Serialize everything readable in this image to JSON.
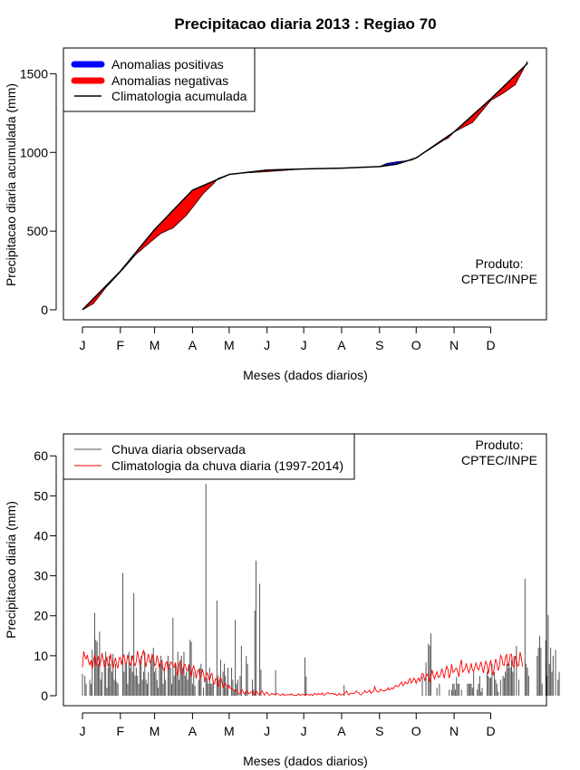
{
  "chart_data": [
    {
      "type": "area",
      "title": "Precipitacao diaria 2013 : Regiao 70",
      "xlabel": "Meses (dados diarios)",
      "ylabel": "Precipitacao diaria acumulada (mm)",
      "xlim": [
        1,
        365
      ],
      "ylim": [
        0,
        1600
      ],
      "x_tick_labels": [
        "J",
        "F",
        "M",
        "A",
        "M",
        "J",
        "J",
        "A",
        "S",
        "O",
        "N",
        "D"
      ],
      "y_ticks": [
        0,
        500,
        1000,
        1500
      ],
      "legend": [
        {
          "label": "Anomalias positivas",
          "color": "#0000ff"
        },
        {
          "label": "Anomalias negativas",
          "color": "#ff0000"
        },
        {
          "label": "Climatologia acumulada",
          "color": "#000000"
        }
      ],
      "annotation": [
        "Produto:",
        "CPTEC/INPE"
      ],
      "climatology_knots": {
        "day": [
          1,
          32,
          60,
          91,
          121,
          130,
          152,
          182,
          213,
          244,
          258,
          274,
          305,
          335,
          365
        ],
        "value": [
          0,
          245,
          510,
          760,
          860,
          868,
          888,
          895,
          900,
          910,
          925,
          965,
          1130,
          1340,
          1565
        ]
      },
      "observed_knots": {
        "day": [
          1,
          10,
          20,
          32,
          45,
          55,
          65,
          75,
          86,
          91,
          100,
          108,
          112,
          121,
          130,
          152,
          182,
          213,
          244,
          250,
          258,
          270,
          274,
          290,
          297,
          300,
          305,
          320,
          335,
          345,
          355,
          365
        ],
        "value": [
          0,
          40,
          140,
          240,
          355,
          420,
          485,
          520,
          600,
          650,
          740,
          800,
          835,
          860,
          868,
          878,
          895,
          900,
          910,
          930,
          940,
          950,
          965,
          1045,
          1080,
          1090,
          1130,
          1190,
          1330,
          1375,
          1430,
          1578
        ]
      }
    },
    {
      "type": "bar",
      "xlabel": "Meses (dados diarios)",
      "ylabel": "Precipitacao diaria (mm)",
      "xlim": [
        1,
        365
      ],
      "ylim": [
        0,
        63
      ],
      "x_tick_labels": [
        "J",
        "F",
        "M",
        "A",
        "M",
        "J",
        "J",
        "A",
        "S",
        "O",
        "N",
        "D"
      ],
      "y_ticks": [
        0,
        10,
        20,
        30,
        40,
        50,
        60
      ],
      "legend": [
        {
          "label": "Chuva diaria observada",
          "color": "#555555"
        },
        {
          "label": "Climatologia da chuva diaria (1997-2014)",
          "color": "#ff0000"
        }
      ],
      "annotation": [
        "Produto:",
        "CPTEC/INPE"
      ],
      "series": [
        {
          "name": "Chuva diaria observada",
          "type": "bar",
          "values": [
            5.5,
            0,
            5,
            3,
            0,
            0,
            4,
            3,
            11.5,
            0,
            20.7,
            14,
            13.5,
            8,
            16,
            4,
            6,
            0,
            9,
            11,
            2,
            7,
            10,
            8,
            6,
            10.5,
            4,
            8,
            3.5,
            3,
            0,
            0,
            0,
            30.7,
            6,
            8,
            8,
            3,
            11,
            7,
            10,
            6,
            25.7,
            5,
            7,
            5,
            3,
            9,
            10,
            4,
            6,
            11,
            4,
            3,
            6,
            0,
            9,
            10,
            12,
            6,
            7,
            4,
            2,
            8,
            10,
            9,
            3,
            7,
            4,
            0,
            10,
            8,
            7,
            3,
            19.5,
            5,
            8,
            6,
            11,
            4,
            9,
            10,
            7,
            11,
            5,
            6,
            4,
            8,
            14,
            13.5,
            3,
            6,
            2.5,
            0,
            0,
            4,
            7,
            8,
            0,
            2,
            0,
            53,
            4.5,
            3,
            7,
            3,
            3,
            4,
            0,
            0,
            23.8,
            5,
            4,
            9,
            0,
            6,
            8,
            5,
            2,
            7,
            0,
            0,
            7,
            4,
            1.5,
            19,
            3,
            4,
            0,
            5,
            12.5,
            0,
            0,
            1,
            10,
            8,
            0,
            0,
            0,
            4,
            1.5,
            21.3,
            33.8,
            0,
            0,
            28,
            6.5,
            0,
            0,
            0,
            0,
            0,
            0,
            0,
            0,
            0,
            0,
            0,
            6.4,
            0,
            0,
            0,
            0,
            0,
            0,
            0,
            0,
            0,
            0,
            0,
            0,
            0,
            0,
            0,
            0,
            0,
            0,
            0,
            0,
            0,
            0,
            0,
            9.6,
            4.8,
            0,
            0,
            0,
            0,
            0,
            0,
            0,
            0,
            0,
            0,
            0,
            0,
            0,
            0,
            0,
            0,
            0,
            0,
            0,
            0,
            0,
            0,
            0,
            0,
            0,
            0,
            0,
            0,
            0,
            0,
            2.7,
            0,
            0,
            0,
            0,
            0,
            0,
            0,
            0,
            0,
            0,
            0,
            0,
            0,
            0,
            0,
            0,
            0,
            0,
            0,
            0,
            0,
            0,
            0,
            0,
            0,
            0,
            0,
            0,
            0,
            0,
            0,
            0,
            0,
            0,
            0,
            0,
            0,
            0,
            0,
            0,
            0,
            0,
            0,
            0,
            0,
            0,
            0,
            0,
            0,
            0,
            0,
            0,
            0,
            0,
            0,
            0,
            0,
            0,
            0,
            0,
            0,
            0,
            0,
            4.8,
            0,
            0,
            8.3,
            0,
            13,
            12.5,
            15.6,
            0,
            0,
            0,
            0,
            2,
            0,
            3,
            0,
            0,
            0,
            0,
            0,
            0,
            0,
            1.5,
            0,
            1.5,
            3,
            3,
            1.5,
            4.7,
            3,
            3,
            0,
            1.5,
            0,
            0,
            0,
            0,
            3,
            3,
            3,
            3,
            2,
            6,
            0,
            0,
            1.5,
            3,
            5,
            1,
            2,
            0,
            0,
            0,
            6,
            5,
            4.5,
            4.5,
            8,
            0,
            6,
            4,
            3,
            1,
            0,
            4,
            0,
            5,
            4.5,
            6,
            8,
            7,
            8,
            7,
            9,
            6,
            10,
            0,
            12.5,
            0,
            4,
            0,
            0,
            0,
            0,
            29.3,
            8,
            7,
            5,
            0,
            0,
            0,
            0,
            0,
            0,
            10,
            12,
            15,
            12,
            3,
            0,
            0,
            13.8,
            5,
            20.2,
            8,
            12,
            6,
            10,
            0,
            11.5,
            0,
            4,
            6,
            0
          ]
        },
        {
          "name": "Climatologia da chuva diaria (1997-2014)",
          "type": "line",
          "values": [
            7.1,
            11.1,
            9.8,
            9.2,
            10.2,
            8.4,
            7.7,
            8.9,
            6.7,
            8.5,
            10.3,
            7.4,
            8.6,
            9.9,
            7.1,
            8.6,
            10.7,
            8.9,
            7.2,
            8,
            9.8,
            7.3,
            8.2,
            10.5,
            8.7,
            6.8,
            8.2,
            9.5,
            7.7,
            6.9,
            9.4,
            9.6,
            7.7,
            9.6,
            10.2,
            8,
            8.2,
            10.2,
            8.9,
            7.6,
            8.4,
            10.1,
            8.4,
            7.5,
            8.5,
            11.2,
            9.5,
            7.8,
            8.4,
            10.5,
            11.4,
            9,
            7.2,
            9.2,
            10.5,
            8.3,
            8.7,
            10.3,
            9.6,
            7.5,
            7.9,
            10.1,
            8.7,
            6.8,
            8.5,
            8.6,
            6.5,
            6.2,
            8.1,
            8.5,
            6.6,
            6.8,
            8.5,
            8.2,
            7.5,
            7.1,
            8.3,
            6.4,
            5,
            7.8,
            8.7,
            5.8,
            5.6,
            7.7,
            7.8,
            6.5,
            6.2,
            7.6,
            6.6,
            4.7,
            6.6,
            7.5,
            6.3,
            4.3,
            6.2,
            6.5,
            5,
            4.6,
            6.7,
            5.6,
            3.4,
            5.1,
            5.7,
            4.7,
            3.8,
            5.2,
            5.6,
            3.2,
            2.9,
            4.3,
            4.1,
            2.2,
            3.3,
            4.7,
            3.6,
            1.9,
            2.8,
            3.1,
            2.5,
            1.8,
            2.6,
            1.8,
            1.8,
            1.7,
            1.2,
            1.2,
            1.5,
            0.7,
            0.4,
            0.4,
            1.4,
            1.4,
            0.5,
            0.5,
            1.1,
            1.2,
            0.5,
            0.5,
            1,
            1.1,
            0.4,
            0.2,
            1.2,
            0.9,
            0.2,
            0.3,
            0.9,
            1.2,
            0.6,
            0.1,
            0.8,
            0.9,
            0.3,
            0.1,
            0.4,
            0.6,
            0.3,
            0.4,
            0.4,
            0.5,
            0.5,
            0.2,
            0.1,
            0.2,
            0.5,
            0.1,
            0.2,
            0.3,
            0.2,
            0.3,
            0.2,
            0.5,
            0.2,
            0.1,
            0.1,
            0.1,
            0.2,
            0.5,
            0.1,
            0.2,
            0.4,
            0.2,
            0.2,
            0.2,
            0.4,
            0.3,
            0.1,
            0.4,
            0.1,
            0.2,
            0.6,
            0.4,
            0.2,
            0.6,
            0.3,
            0.3,
            0.7,
            0.2,
            0.2,
            0.3,
            0.7,
            0.8,
            0.5,
            0.5,
            0.6,
            0.5,
            0.3,
            0.5,
            0.1,
            0.2,
            0.6,
            0.2,
            0.2,
            0.3,
            0.4,
            0.8,
            1.2,
            0.6,
            0.2,
            0.6,
            0.6,
            0.5,
            0.6,
            0.7,
            1.2,
            0.9,
            0.8,
            0.3,
            0.2,
            0.6,
            0.7,
            1.3,
            0.8,
            0.8,
            1.1,
            1.4,
            0.6,
            0.9,
            1,
            2.3,
            1.4,
            1.1,
            0.9,
            1.1,
            1.6,
            1.3,
            1.3,
            1.2,
            1.4,
            1.4,
            2,
            1.4,
            1.6,
            2,
            1.7,
            2,
            2.6,
            2.5,
            2.2,
            2.5,
            3.1,
            3.4,
            2.5,
            2.8,
            3.5,
            3.1,
            3,
            3.9,
            4.3,
            3.2,
            3.6,
            4.4,
            4,
            3.1,
            4,
            4.4,
            3.6,
            4.5,
            5.6,
            5.3,
            3.7,
            4.8,
            5.4,
            4.9,
            3.3,
            4.4,
            6.5,
            5.1,
            4.2,
            5.2,
            6,
            4.7,
            4.6,
            5.5,
            6.8,
            5.6,
            4.4,
            6.2,
            7.4,
            6.5,
            4.4,
            5.5,
            7.9,
            5.8,
            6,
            6.7,
            6.9,
            5.9,
            4.7,
            7.6,
            9,
            5.9,
            6.3,
            6.8,
            8.1,
            6.7,
            5.7,
            6.7,
            8.1,
            6.5,
            6.1,
            7.2,
            8.2,
            7,
            6.4,
            7.4,
            8.5,
            7.1,
            5.7,
            7.4,
            8.6,
            7.8,
            5.4,
            7.5,
            8.9,
            6.4,
            5.1,
            7.4,
            9.2,
            8.1,
            6.3,
            7.2,
            10.1,
            9.5,
            7.7,
            7.6,
            9.6,
            10.3,
            7.3,
            8.2,
            10.3,
            10.4,
            7.5,
            7.1,
            9.9,
            9.1,
            7.4,
            7.6,
            10.9,
            9.5,
            7.3
          ]
        }
      ]
    }
  ]
}
